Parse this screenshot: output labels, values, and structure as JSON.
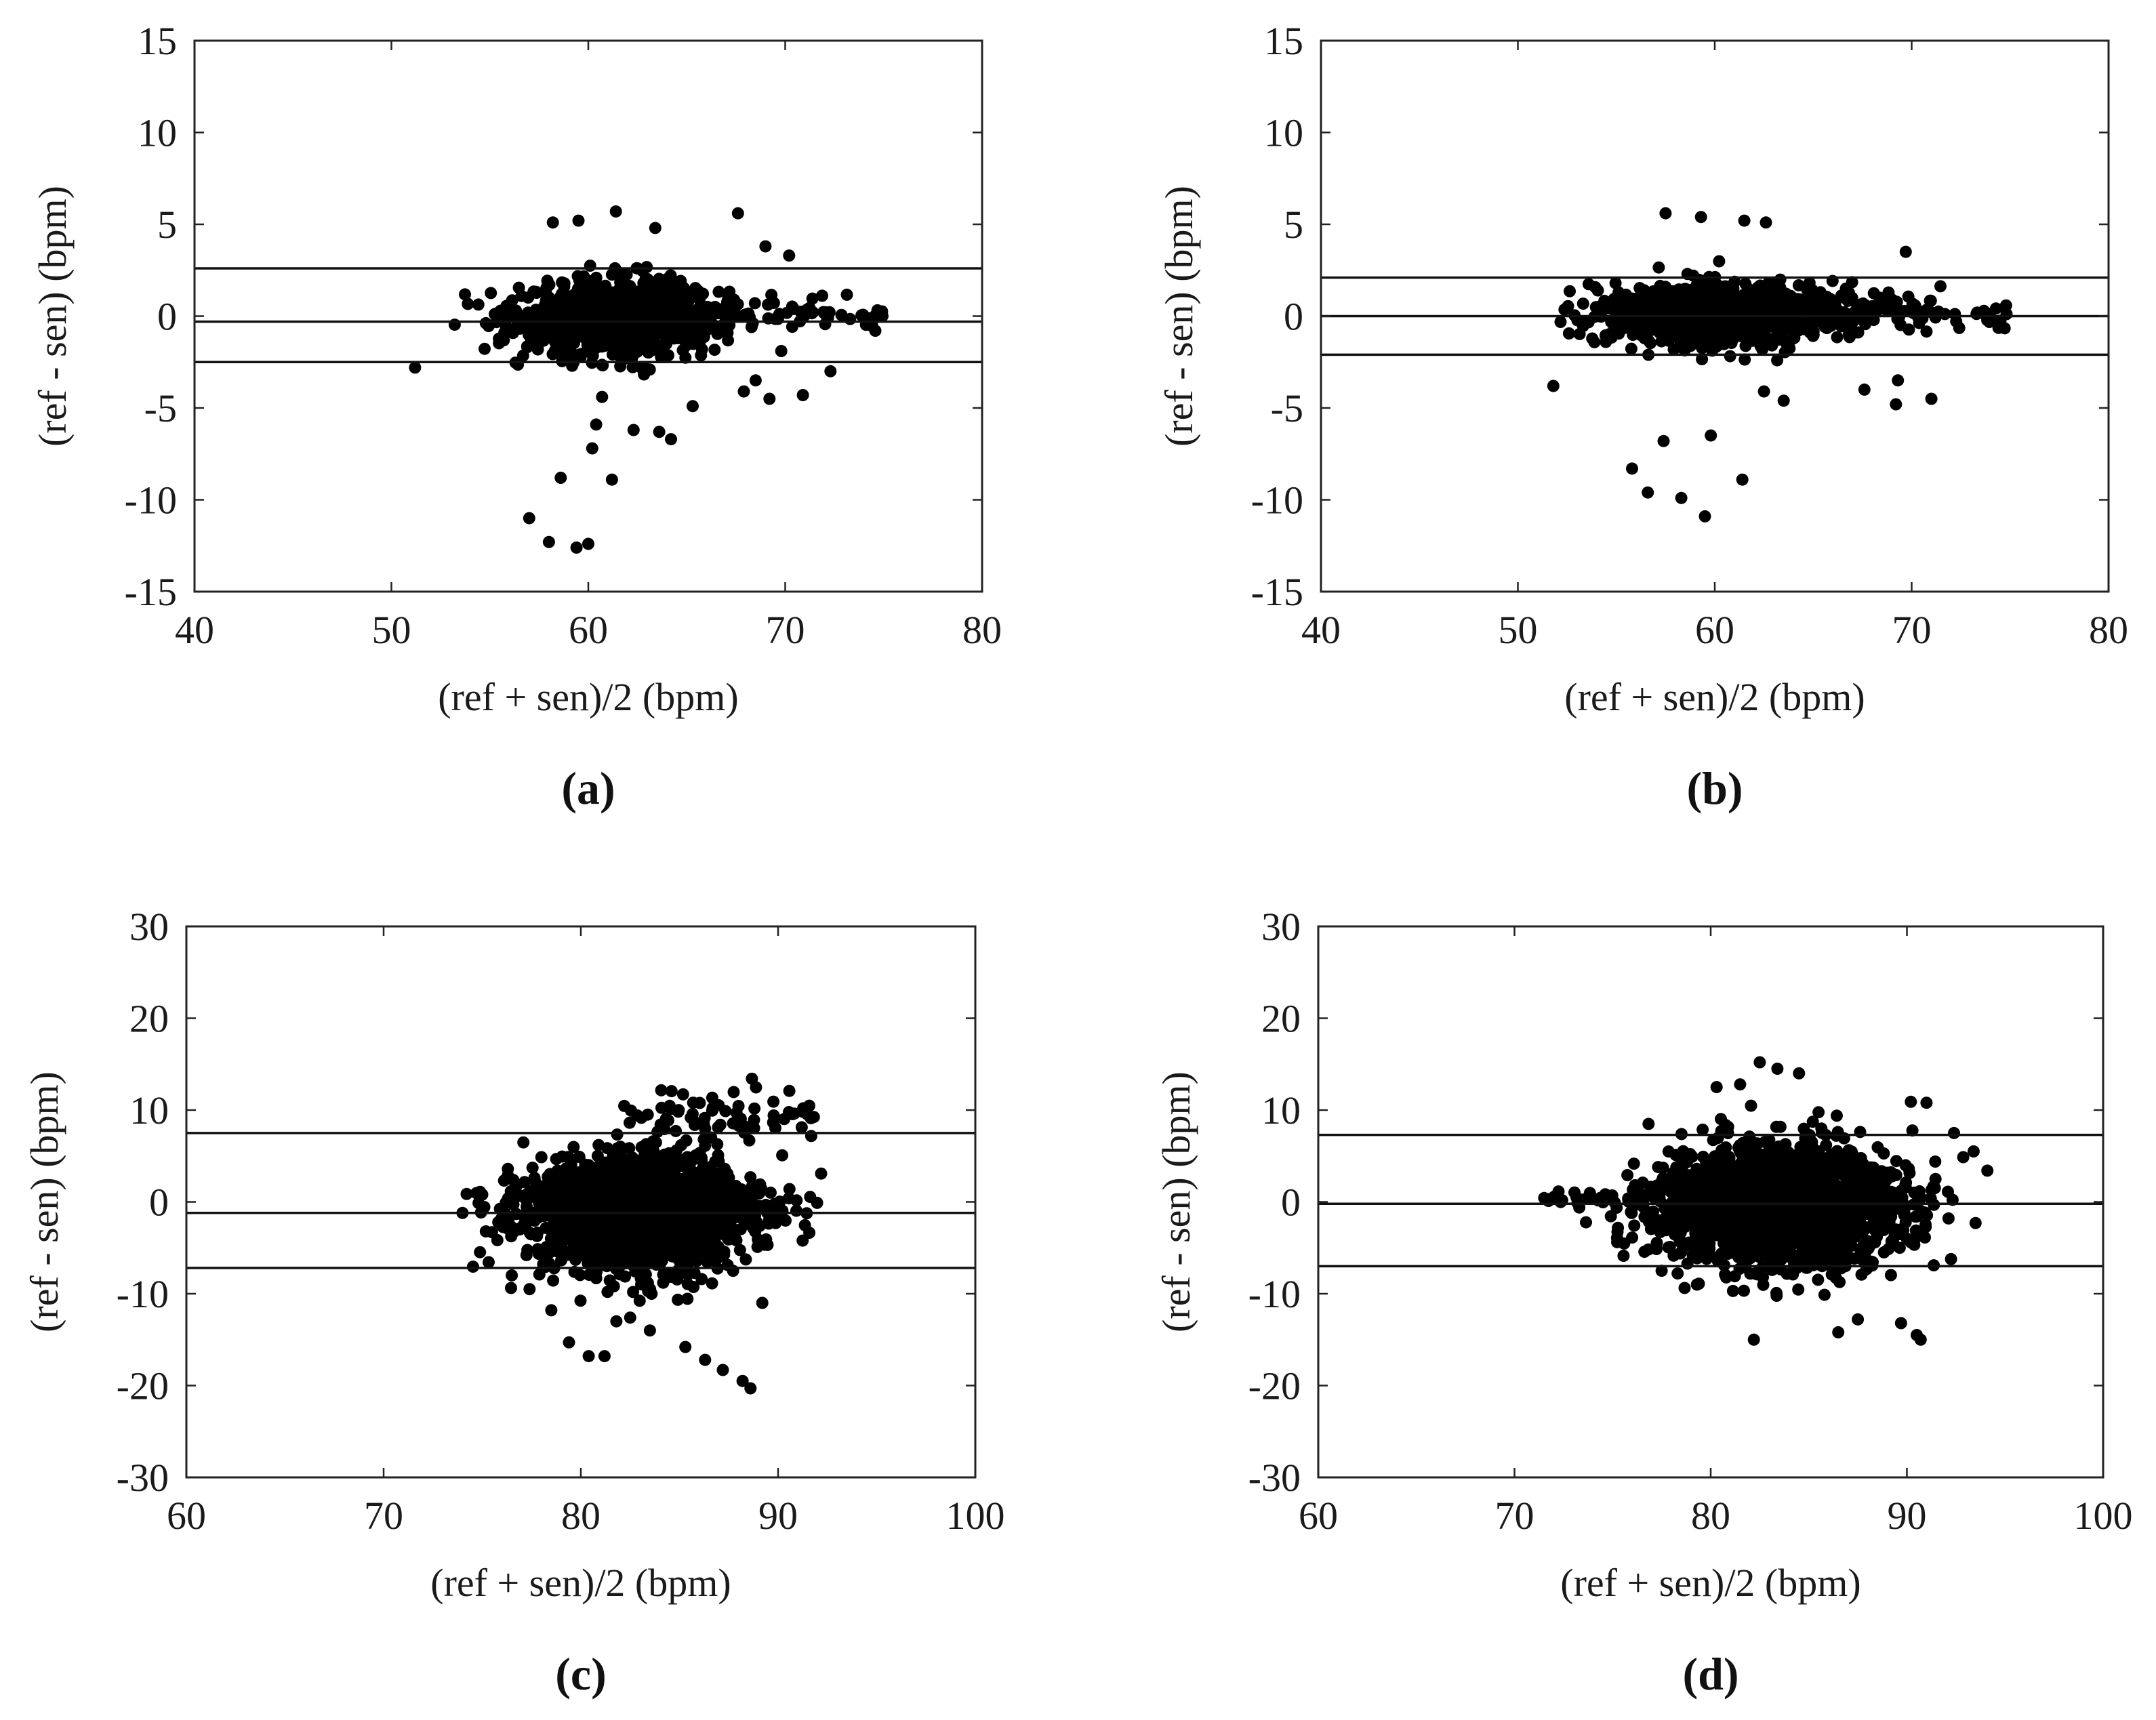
{
  "chart_data": [
    {
      "type": "scatter",
      "panel_label": "(a)",
      "xlabel": "(ref + sen)/2 (bpm)",
      "ylabel": "(ref - sen) (bpm)",
      "xlim": [
        40,
        80
      ],
      "ylim": [
        -15,
        15
      ],
      "xticks": [
        "40",
        "50",
        "60",
        "70",
        "80"
      ],
      "yticks": [
        "15",
        "10",
        "5",
        "0",
        "-5",
        "-10",
        "-15"
      ],
      "reference_lines": [
        2.6,
        -0.3,
        -2.5
      ],
      "cluster": {
        "center": [
          61.5,
          -0.1
        ],
        "spread": [
          2.6,
          1.1
        ],
        "count": 1000,
        "x_range": [
          51.5,
          75
        ],
        "y_range": [
          -3.2,
          3.3
        ]
      },
      "tail": {
        "x_range": [
          66,
          75
        ],
        "y_mean": 0.2,
        "y_spread": 0.5,
        "count": 60
      },
      "outliers": [
        [
          51.2,
          -2.8
        ],
        [
          57,
          -11
        ],
        [
          58,
          -12.3
        ],
        [
          58.6,
          -8.8
        ],
        [
          59.4,
          -12.6
        ],
        [
          60,
          -12.4
        ],
        [
          60.2,
          -7.2
        ],
        [
          60.4,
          -5.9
        ],
        [
          60.7,
          -4.4
        ],
        [
          61.2,
          -8.9
        ],
        [
          62.3,
          -6.2
        ],
        [
          63.6,
          -6.3
        ],
        [
          64.2,
          -6.7
        ],
        [
          65.3,
          -4.9
        ],
        [
          58.2,
          5.1
        ],
        [
          59.5,
          5.2
        ],
        [
          61.4,
          5.7
        ],
        [
          63.4,
          4.8
        ],
        [
          67.6,
          5.6
        ],
        [
          69,
          3.8
        ],
        [
          70.2,
          3.3
        ],
        [
          68.5,
          -3.5
        ],
        [
          69.2,
          -4.5
        ],
        [
          70.9,
          -4.3
        ],
        [
          72.3,
          -3
        ],
        [
          67.9,
          -4.1
        ],
        [
          69.8,
          -1.9
        ]
      ]
    },
    {
      "type": "scatter",
      "panel_label": "(b)",
      "xlabel": "(ref + sen)/2 (bpm)",
      "ylabel": "(ref - sen) (bpm)",
      "xlim": [
        40,
        80
      ],
      "ylim": [
        -15,
        15
      ],
      "xticks": [
        "40",
        "50",
        "60",
        "70",
        "80"
      ],
      "yticks": [
        "15",
        "10",
        "5",
        "0",
        "-5",
        "-10",
        "-15"
      ],
      "reference_lines": [
        2.1,
        0,
        -2.1
      ],
      "cluster": {
        "center": [
          60.5,
          0.1
        ],
        "spread": [
          3.2,
          0.9
        ],
        "count": 900,
        "x_range": [
          52,
          75
        ],
        "y_range": [
          -2.8,
          3.0
        ]
      },
      "tail": {
        "x_range": [
          65,
          75
        ],
        "y_mean": 0.2,
        "y_spread": 0.5,
        "count": 80
      },
      "outliers": [
        [
          51.8,
          -3.8
        ],
        [
          55.8,
          -8.3
        ],
        [
          56.6,
          -9.6
        ],
        [
          57.4,
          -6.8
        ],
        [
          58.3,
          -9.9
        ],
        [
          59.5,
          -10.9
        ],
        [
          59.8,
          -6.5
        ],
        [
          61.4,
          -8.9
        ],
        [
          57.5,
          5.6
        ],
        [
          59.3,
          5.4
        ],
        [
          61.5,
          5.2
        ],
        [
          62.6,
          5.1
        ],
        [
          69.7,
          3.5
        ],
        [
          69.3,
          -3.5
        ],
        [
          69.2,
          -4.8
        ],
        [
          71,
          -4.5
        ],
        [
          63.5,
          -4.6
        ],
        [
          62.5,
          -4.1
        ],
        [
          67.6,
          -4
        ]
      ]
    },
    {
      "type": "scatter",
      "panel_label": "(c)",
      "xlabel": "(ref + sen)/2 (bpm)",
      "ylabel": "(ref - sen) (bpm)",
      "xlim": [
        60,
        100
      ],
      "ylim": [
        -30,
        30
      ],
      "xticks": [
        "60",
        "70",
        "80",
        "90",
        "100"
      ],
      "yticks": [
        "30",
        "20",
        "10",
        "0",
        "-10",
        "-20",
        "-30"
      ],
      "reference_lines": [
        7.5,
        -1.2,
        -7.2
      ],
      "cluster": {
        "center": [
          83,
          -1.3
        ],
        "spread": [
          3.0,
          3.6
        ],
        "count": 1600,
        "x_range": [
          74,
          92.5
        ],
        "y_range": [
          -12,
          11
        ]
      },
      "tail": {
        "x_range": [
          84,
          92
        ],
        "y_mean": 9.5,
        "y_spread": 1.5,
        "count": 60
      },
      "outliers": [
        [
          74,
          -1.2
        ],
        [
          75,
          0.8
        ],
        [
          76.5,
          -8
        ],
        [
          77.4,
          -9.5
        ],
        [
          78.5,
          -11.8
        ],
        [
          79.4,
          -15.3
        ],
        [
          80.4,
          -16.8
        ],
        [
          81.2,
          -16.8
        ],
        [
          81.8,
          -13
        ],
        [
          85.3,
          -15.8
        ],
        [
          86.3,
          -17.2
        ],
        [
          87.2,
          -18.3
        ],
        [
          88.2,
          -19.5
        ],
        [
          88.6,
          -20.3
        ],
        [
          82.5,
          -12.6
        ],
        [
          83.5,
          -14
        ],
        [
          89.2,
          -11
        ]
      ]
    },
    {
      "type": "scatter",
      "panel_label": "(d)",
      "xlabel": "(ref + sen)/2 (bpm)",
      "ylabel": "(ref - sen) (bpm)",
      "xlim": [
        60,
        100
      ],
      "ylim": [
        -30,
        30
      ],
      "xticks": [
        "60",
        "70",
        "80",
        "90",
        "100"
      ],
      "yticks": [
        "30",
        "20",
        "10",
        "0",
        "-10",
        "-20",
        "-30"
      ],
      "reference_lines": [
        7.3,
        -0.2,
        -7
      ],
      "cluster": {
        "center": [
          83.5,
          -0.3
        ],
        "spread": [
          3.2,
          3.7
        ],
        "count": 1700,
        "x_range": [
          71.5,
          94
        ],
        "y_range": [
          -12.5,
          12
        ]
      },
      "tail": {
        "x_range": [
          71.5,
          76
        ],
        "y_mean": 0.3,
        "y_spread": 0.4,
        "count": 30
      },
      "outliers": [
        [
          82.5,
          15.2
        ],
        [
          83.4,
          14.5
        ],
        [
          84.5,
          14
        ],
        [
          80.3,
          12.5
        ],
        [
          81.5,
          12.8
        ],
        [
          82.2,
          -15
        ],
        [
          86.5,
          -14.2
        ],
        [
          87.5,
          -12.8
        ],
        [
          89.7,
          -13.2
        ],
        [
          90.5,
          -14.5
        ],
        [
          90.7,
          -15
        ],
        [
          92.4,
          7.5
        ],
        [
          93.4,
          5.5
        ],
        [
          94.1,
          3.4
        ],
        [
          93.5,
          -2.3
        ],
        [
          91,
          10.8
        ],
        [
          90.2,
          10.9
        ],
        [
          79.3,
          -9
        ],
        [
          77.5,
          -7.5
        ]
      ]
    }
  ]
}
